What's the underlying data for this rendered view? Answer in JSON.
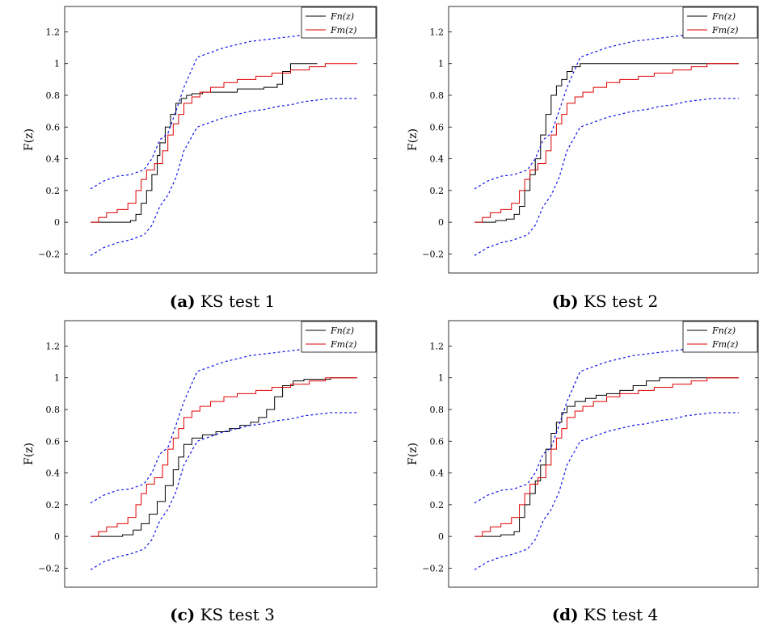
{
  "chart_data": [
    {
      "type": "line",
      "caption_letter": "(a)",
      "caption_text": "KS test 1",
      "ylabel": "F(z)",
      "ylim": [
        -0.32,
        1.36
      ],
      "yticks": [
        -0.2,
        0,
        0.2,
        0.4,
        0.6,
        0.8,
        1,
        1.2
      ],
      "ytick_labels": [
        "−0.2",
        "0",
        "0.2",
        "0.4",
        "0.6",
        "0.8",
        "1",
        "1.2"
      ],
      "xlim": [
        0,
        100
      ],
      "legend": {
        "position": "top-right",
        "entries": [
          "Fn(z)",
          "Fm(z)"
        ]
      },
      "series": [
        {
          "name": "Fn(z)",
          "color": "#000000",
          "style": "step",
          "x": [
            0,
            15,
            17,
            19,
            21,
            23,
            25,
            26,
            28,
            30,
            32,
            34,
            36,
            38,
            40,
            42,
            55,
            65,
            70,
            72,
            75,
            85
          ],
          "y": [
            0,
            0.01,
            0.05,
            0.12,
            0.2,
            0.3,
            0.42,
            0.5,
            0.6,
            0.68,
            0.75,
            0.78,
            0.8,
            0.81,
            0.81,
            0.82,
            0.84,
            0.85,
            0.87,
            0.95,
            1.0,
            1.0
          ]
        },
        {
          "name": "Fm(z)",
          "color": "#e00000",
          "style": "step",
          "x": [
            0,
            3,
            6,
            10,
            14,
            17,
            19,
            21,
            24,
            27,
            29,
            31,
            33,
            35,
            38,
            41,
            45,
            50,
            55,
            62,
            68,
            75,
            82,
            88,
            100
          ],
          "y": [
            0,
            0.03,
            0.06,
            0.08,
            0.12,
            0.2,
            0.27,
            0.33,
            0.37,
            0.45,
            0.55,
            0.62,
            0.68,
            0.75,
            0.79,
            0.82,
            0.85,
            0.88,
            0.9,
            0.92,
            0.94,
            0.96,
            0.98,
            1.0,
            1.0
          ]
        },
        {
          "name": "upper",
          "color": "#1010e8",
          "style": "dashed",
          "x": [
            0,
            5,
            10,
            15,
            20,
            23,
            26,
            29,
            32,
            35,
            40,
            45,
            50,
            55,
            60,
            65,
            70,
            75,
            80,
            85,
            90,
            100
          ],
          "y": [
            0.21,
            0.26,
            0.29,
            0.3,
            0.33,
            0.4,
            0.52,
            0.56,
            0.7,
            0.85,
            1.04,
            1.07,
            1.1,
            1.12,
            1.14,
            1.15,
            1.16,
            1.17,
            1.18,
            1.19,
            1.2,
            1.2
          ]
        },
        {
          "name": "lower",
          "color": "#1010e8",
          "style": "dashed",
          "x": [
            0,
            5,
            10,
            15,
            20,
            23,
            26,
            29,
            32,
            35,
            40,
            45,
            50,
            55,
            60,
            65,
            70,
            75,
            80,
            85,
            90,
            100
          ],
          "y": [
            -0.21,
            -0.16,
            -0.13,
            -0.11,
            -0.08,
            -0.02,
            0.1,
            0.17,
            0.28,
            0.45,
            0.6,
            0.63,
            0.66,
            0.68,
            0.7,
            0.71,
            0.73,
            0.74,
            0.76,
            0.77,
            0.78,
            0.78
          ]
        }
      ]
    },
    {
      "type": "line",
      "caption_letter": "(b)",
      "caption_text": "KS test 2",
      "ylabel": "F(z)",
      "ylim": [
        -0.32,
        1.36
      ],
      "yticks": [
        -0.2,
        0,
        0.2,
        0.4,
        0.6,
        0.8,
        1,
        1.2
      ],
      "ytick_labels": [
        "−0.2",
        "0",
        "0.2",
        "0.4",
        "0.6",
        "0.8",
        "1",
        "1.2"
      ],
      "xlim": [
        0,
        100
      ],
      "legend": {
        "position": "top-right",
        "entries": [
          "Fn(z)",
          "Fm(z)"
        ]
      },
      "series": [
        {
          "name": "Fn(z)",
          "color": "#000000",
          "style": "step",
          "x": [
            0,
            8,
            12,
            15,
            17,
            19,
            21,
            23,
            25,
            27,
            29,
            31,
            33,
            35,
            37,
            40,
            45,
            100
          ],
          "y": [
            0,
            0.01,
            0.02,
            0.05,
            0.1,
            0.2,
            0.3,
            0.4,
            0.55,
            0.68,
            0.8,
            0.86,
            0.9,
            0.95,
            0.98,
            1.0,
            1.0,
            1.0
          ]
        },
        {
          "name": "Fm(z)",
          "color": "#e00000",
          "style": "step",
          "x": [
            0,
            3,
            6,
            10,
            14,
            17,
            19,
            21,
            24,
            27,
            29,
            31,
            33,
            35,
            38,
            41,
            45,
            50,
            55,
            62,
            68,
            75,
            82,
            88,
            100
          ],
          "y": [
            0,
            0.03,
            0.06,
            0.08,
            0.12,
            0.2,
            0.27,
            0.33,
            0.37,
            0.45,
            0.55,
            0.62,
            0.68,
            0.75,
            0.79,
            0.82,
            0.85,
            0.88,
            0.9,
            0.92,
            0.94,
            0.96,
            0.98,
            1.0,
            1.0
          ]
        },
        {
          "name": "upper",
          "color": "#1010e8",
          "style": "dashed",
          "x": [
            0,
            5,
            10,
            15,
            20,
            23,
            26,
            29,
            32,
            35,
            40,
            45,
            50,
            55,
            60,
            65,
            70,
            75,
            80,
            85,
            90,
            100
          ],
          "y": [
            0.21,
            0.26,
            0.29,
            0.3,
            0.33,
            0.4,
            0.52,
            0.56,
            0.7,
            0.85,
            1.04,
            1.07,
            1.1,
            1.12,
            1.14,
            1.15,
            1.16,
            1.17,
            1.18,
            1.19,
            1.2,
            1.2
          ]
        },
        {
          "name": "lower",
          "color": "#1010e8",
          "style": "dashed",
          "x": [
            0,
            5,
            10,
            15,
            20,
            23,
            26,
            29,
            32,
            35,
            40,
            45,
            50,
            55,
            60,
            65,
            70,
            75,
            80,
            85,
            90,
            100
          ],
          "y": [
            -0.21,
            -0.16,
            -0.13,
            -0.11,
            -0.08,
            -0.02,
            0.1,
            0.17,
            0.28,
            0.45,
            0.6,
            0.63,
            0.66,
            0.68,
            0.7,
            0.71,
            0.73,
            0.74,
            0.76,
            0.77,
            0.78,
            0.78
          ]
        }
      ]
    },
    {
      "type": "line",
      "caption_letter": "(c)",
      "caption_text": "KS test 3",
      "ylabel": "F(z)",
      "ylim": [
        -0.32,
        1.36
      ],
      "yticks": [
        -0.2,
        0,
        0.2,
        0.4,
        0.6,
        0.8,
        1,
        1.2
      ],
      "ytick_labels": [
        "−0.2",
        "0",
        "0.2",
        "0.4",
        "0.6",
        "0.8",
        "1",
        "1.2"
      ],
      "xlim": [
        0,
        100
      ],
      "legend": {
        "position": "top-right",
        "entries": [
          "Fn(z)",
          "Fm(z)"
        ]
      },
      "series": [
        {
          "name": "Fn(z)",
          "color": "#000000",
          "style": "step",
          "x": [
            0,
            12,
            16,
            19,
            22,
            25,
            28,
            31,
            33,
            35,
            38,
            42,
            47,
            52,
            56,
            60,
            63,
            66,
            69,
            72,
            76,
            80,
            90,
            100
          ],
          "y": [
            0,
            0.01,
            0.04,
            0.08,
            0.14,
            0.22,
            0.32,
            0.42,
            0.5,
            0.58,
            0.62,
            0.64,
            0.66,
            0.68,
            0.7,
            0.72,
            0.75,
            0.8,
            0.88,
            0.95,
            0.98,
            0.99,
            1.0,
            1.0
          ]
        },
        {
          "name": "Fm(z)",
          "color": "#e00000",
          "style": "step",
          "x": [
            0,
            3,
            6,
            10,
            14,
            17,
            19,
            21,
            24,
            27,
            29,
            31,
            33,
            35,
            38,
            41,
            45,
            50,
            55,
            62,
            68,
            75,
            82,
            88,
            100
          ],
          "y": [
            0,
            0.03,
            0.06,
            0.08,
            0.12,
            0.2,
            0.27,
            0.33,
            0.37,
            0.45,
            0.55,
            0.62,
            0.68,
            0.75,
            0.79,
            0.82,
            0.85,
            0.88,
            0.9,
            0.92,
            0.94,
            0.96,
            0.98,
            1.0,
            1.0
          ]
        },
        {
          "name": "upper",
          "color": "#1010e8",
          "style": "dashed",
          "x": [
            0,
            5,
            10,
            15,
            20,
            23,
            26,
            29,
            32,
            35,
            40,
            45,
            50,
            55,
            60,
            65,
            70,
            75,
            80,
            85,
            90,
            100
          ],
          "y": [
            0.21,
            0.26,
            0.29,
            0.3,
            0.33,
            0.4,
            0.52,
            0.56,
            0.7,
            0.85,
            1.04,
            1.07,
            1.1,
            1.12,
            1.14,
            1.15,
            1.16,
            1.17,
            1.18,
            1.19,
            1.2,
            1.2
          ]
        },
        {
          "name": "lower",
          "color": "#1010e8",
          "style": "dashed",
          "x": [
            0,
            5,
            10,
            15,
            20,
            23,
            26,
            29,
            32,
            35,
            40,
            45,
            50,
            55,
            60,
            65,
            70,
            75,
            80,
            85,
            90,
            100
          ],
          "y": [
            -0.21,
            -0.16,
            -0.13,
            -0.11,
            -0.08,
            -0.02,
            0.1,
            0.17,
            0.28,
            0.45,
            0.6,
            0.63,
            0.66,
            0.68,
            0.7,
            0.71,
            0.73,
            0.74,
            0.76,
            0.77,
            0.78,
            0.78
          ]
        }
      ]
    },
    {
      "type": "line",
      "caption_letter": "(d)",
      "caption_text": "KS test 4",
      "ylabel": "F(z)",
      "ylim": [
        -0.32,
        1.36
      ],
      "yticks": [
        -0.2,
        0,
        0.2,
        0.4,
        0.6,
        0.8,
        1,
        1.2
      ],
      "ytick_labels": [
        "−0.2",
        "0",
        "0.2",
        "0.4",
        "0.6",
        "0.8",
        "1",
        "1.2"
      ],
      "xlim": [
        0,
        100
      ],
      "legend": {
        "position": "top-right",
        "entries": [
          "Fn(z)",
          "Fm(z)"
        ]
      },
      "series": [
        {
          "name": "Fn(z)",
          "color": "#000000",
          "style": "step",
          "x": [
            0,
            10,
            15,
            17,
            19,
            21,
            23,
            25,
            27,
            29,
            31,
            33,
            35,
            38,
            42,
            46,
            50,
            55,
            60,
            65,
            70,
            100
          ],
          "y": [
            0,
            0.01,
            0.03,
            0.12,
            0.2,
            0.27,
            0.35,
            0.45,
            0.55,
            0.65,
            0.72,
            0.78,
            0.82,
            0.85,
            0.87,
            0.89,
            0.9,
            0.92,
            0.95,
            0.98,
            1.0,
            1.0
          ]
        },
        {
          "name": "Fm(z)",
          "color": "#e00000",
          "style": "step",
          "x": [
            0,
            3,
            6,
            10,
            14,
            17,
            19,
            21,
            24,
            27,
            29,
            31,
            33,
            35,
            38,
            41,
            45,
            50,
            55,
            62,
            68,
            75,
            82,
            88,
            100
          ],
          "y": [
            0,
            0.03,
            0.06,
            0.08,
            0.12,
            0.2,
            0.27,
            0.33,
            0.37,
            0.45,
            0.55,
            0.62,
            0.68,
            0.75,
            0.79,
            0.82,
            0.85,
            0.88,
            0.9,
            0.92,
            0.94,
            0.96,
            0.98,
            1.0,
            1.0
          ]
        },
        {
          "name": "upper",
          "color": "#1010e8",
          "style": "dashed",
          "x": [
            0,
            5,
            10,
            15,
            20,
            23,
            26,
            29,
            32,
            35,
            40,
            45,
            50,
            55,
            60,
            65,
            70,
            75,
            80,
            85,
            90,
            100
          ],
          "y": [
            0.21,
            0.26,
            0.29,
            0.3,
            0.33,
            0.4,
            0.52,
            0.56,
            0.7,
            0.85,
            1.04,
            1.07,
            1.1,
            1.12,
            1.14,
            1.15,
            1.16,
            1.17,
            1.18,
            1.19,
            1.2,
            1.2
          ]
        },
        {
          "name": "lower",
          "color": "#1010e8",
          "style": "dashed",
          "x": [
            0,
            5,
            10,
            15,
            20,
            23,
            26,
            29,
            32,
            35,
            40,
            45,
            50,
            55,
            60,
            65,
            70,
            75,
            80,
            85,
            90,
            100
          ],
          "y": [
            -0.21,
            -0.16,
            -0.13,
            -0.11,
            -0.08,
            -0.02,
            0.1,
            0.17,
            0.28,
            0.45,
            0.6,
            0.63,
            0.66,
            0.68,
            0.7,
            0.71,
            0.73,
            0.74,
            0.76,
            0.77,
            0.78,
            0.78
          ]
        }
      ]
    }
  ]
}
